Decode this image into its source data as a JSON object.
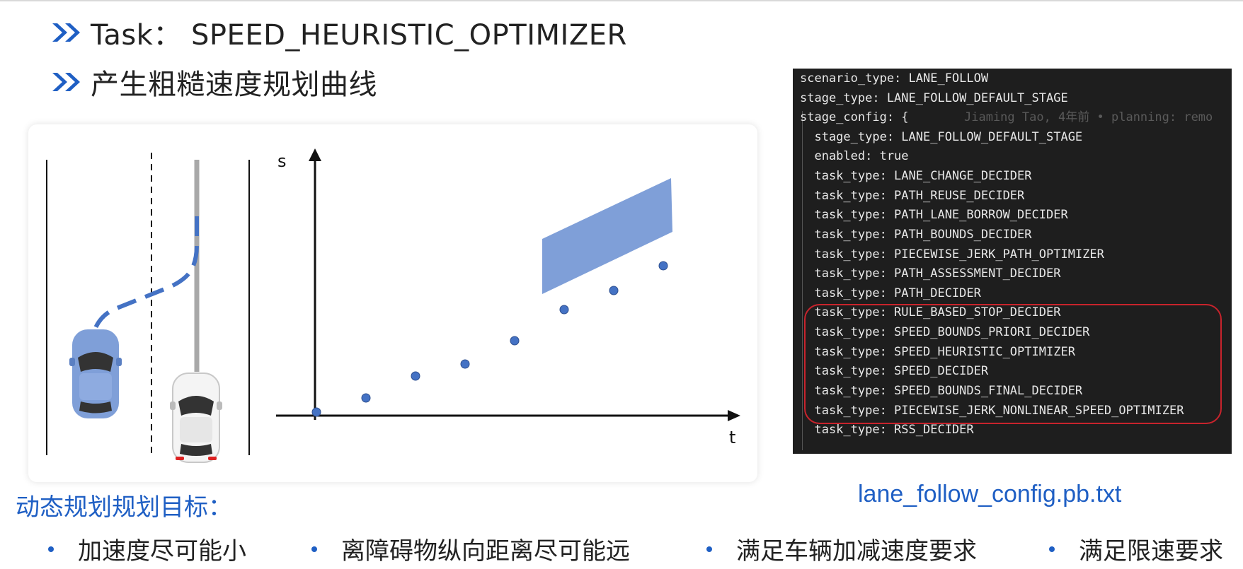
{
  "heading_task": "Task： SPEED_HEURISTIC_OPTIMIZER",
  "heading_desc": "产生粗糙速度规划曲线",
  "diagram": {
    "s_label": "s",
    "t_label": "t",
    "points_count_note": "",
    "colors": {
      "accent": "#4472c4",
      "obstacle": "#7f9fd8",
      "lane": "#111111"
    }
  },
  "code": {
    "lines": [
      "scenario_type: LANE_FOLLOW",
      "stage_type: LANE_FOLLOW_DEFAULT_STAGE",
      "stage_config: {",
      "  stage_type: LANE_FOLLOW_DEFAULT_STAGE",
      "  enabled: true",
      "  task_type: LANE_CHANGE_DECIDER",
      "  task_type: PATH_REUSE_DECIDER",
      "  task_type: PATH_LANE_BORROW_DECIDER",
      "  task_type: PATH_BOUNDS_DECIDER",
      "  task_type: PIECEWISE_JERK_PATH_OPTIMIZER",
      "  task_type: PATH_ASSESSMENT_DECIDER",
      "  task_type: PATH_DECIDER",
      "  task_type: RULE_BASED_STOP_DECIDER",
      "  task_type: SPEED_BOUNDS_PRIORI_DECIDER",
      "  task_type: SPEED_HEURISTIC_OPTIMIZER",
      "  task_type: SPEED_DECIDER",
      "  task_type: SPEED_BOUNDS_FINAL_DECIDER",
      "  task_type: PIECEWISE_JERK_NONLINEAR_SPEED_OPTIMIZER",
      "  task_type: RSS_DECIDER"
    ],
    "blame": "Jiaming Tao, 4年前 • planning: remo"
  },
  "file_name": "lane_follow_config.pb.txt",
  "goal_title": "动态规划规划目标：",
  "goals": [
    "加速度尽可能小",
    "离障碍物纵向距离尽可能远",
    "满足车辆加减速度要求",
    "满足限速要求"
  ]
}
